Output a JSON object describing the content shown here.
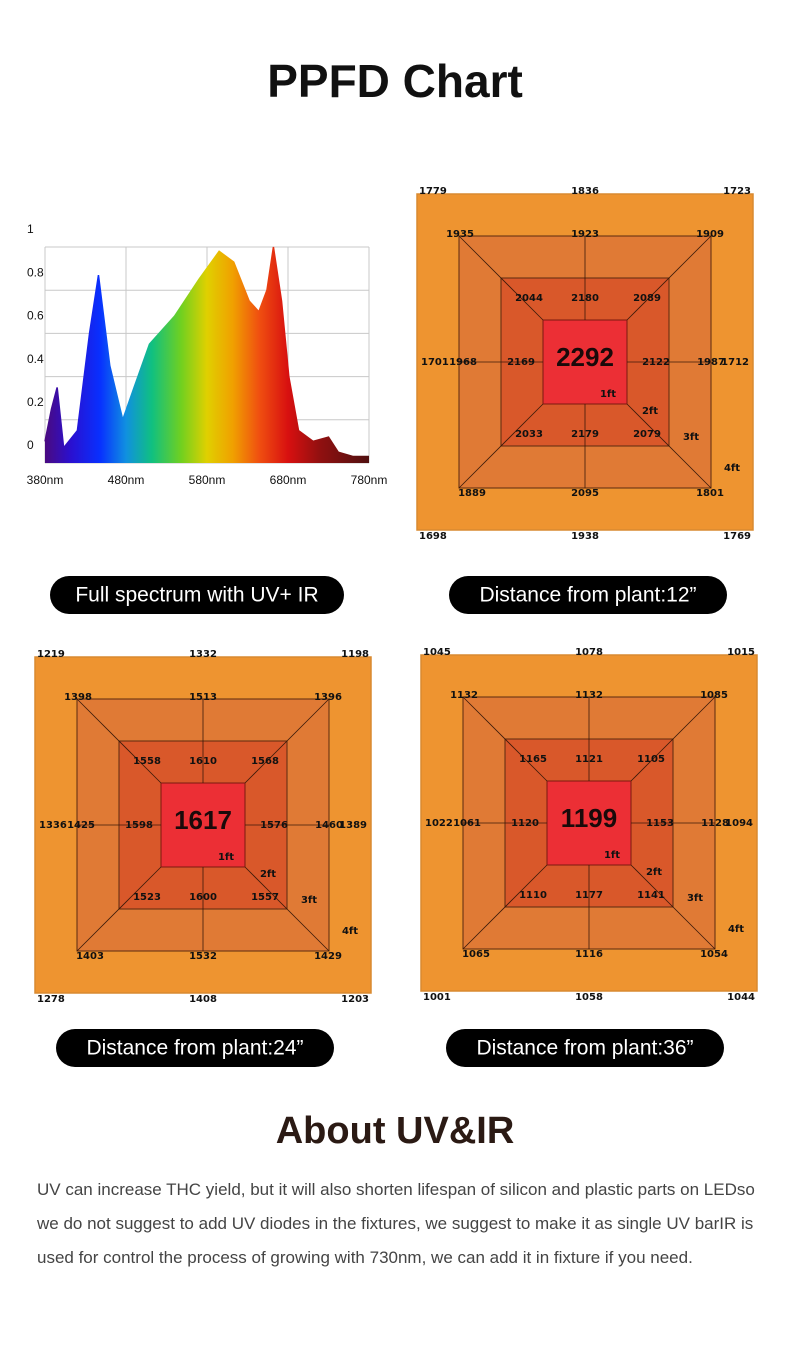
{
  "header": {
    "title": "PPFD Chart"
  },
  "spectrum_caption": "Full spectrum with UV+ IR",
  "chart_data": {
    "type": "area",
    "x": [
      380,
      388,
      395,
      403,
      420,
      435,
      446,
      460,
      476,
      490,
      509,
      540,
      570,
      595,
      613,
      632,
      644,
      654,
      662,
      672,
      681,
      693,
      711,
      730,
      742,
      760,
      780
    ],
    "values": [
      0.1,
      0.25,
      0.35,
      0.07,
      0.15,
      0.6,
      0.87,
      0.45,
      0.2,
      0.35,
      0.55,
      0.68,
      0.85,
      0.98,
      0.93,
      0.75,
      0.7,
      0.8,
      1.0,
      0.75,
      0.4,
      0.15,
      0.1,
      0.12,
      0.05,
      0.03,
      0.03
    ],
    "xlim": [
      380,
      780
    ],
    "ylim": [
      0,
      1
    ],
    "xticks": [
      {
        "value": 380,
        "label": "380nm"
      },
      {
        "value": 480,
        "label": "480nm"
      },
      {
        "value": 580,
        "label": "580nm"
      },
      {
        "value": 680,
        "label": "680nm"
      },
      {
        "value": 780,
        "label": "780nm"
      }
    ],
    "yticks": [
      0,
      0.2,
      0.4,
      0.6,
      0.8,
      1
    ],
    "grid": true
  },
  "ppfd_maps": [
    {
      "caption": "Distance from plant:12”",
      "center": {
        "label": "1ft",
        "value": 2292
      },
      "rings": [
        {
          "label": "4ft",
          "values": [
            1779,
            1836,
            1723,
            1701,
            1712,
            1698,
            1938,
            1769
          ]
        },
        {
          "label": "3ft",
          "values": [
            1935,
            1923,
            1909,
            1968,
            1987,
            1889,
            2095,
            1801
          ]
        },
        {
          "label": "2ft",
          "values": [
            2044,
            2180,
            2089,
            2169,
            2122,
            2033,
            2179,
            2079
          ]
        }
      ]
    },
    {
      "caption": "Distance from plant:24”",
      "center": {
        "label": "1ft",
        "value": 1617
      },
      "rings": [
        {
          "label": "4ft",
          "values": [
            1219,
            1332,
            1198,
            1336,
            1389,
            1278,
            1408,
            1203
          ]
        },
        {
          "label": "3ft",
          "values": [
            1398,
            1513,
            1396,
            1425,
            1460,
            1403,
            1532,
            1429
          ]
        },
        {
          "label": "2ft",
          "values": [
            1558,
            1610,
            1568,
            1598,
            1576,
            1523,
            1600,
            1557
          ]
        }
      ]
    },
    {
      "caption": "Distance from plant:36”",
      "center": {
        "label": "1ft",
        "value": 1199
      },
      "rings": [
        {
          "label": "4ft",
          "values": [
            1045,
            1078,
            1015,
            1022,
            1094,
            1001,
            1058,
            1044
          ]
        },
        {
          "label": "3ft",
          "values": [
            1132,
            1132,
            1085,
            1061,
            1128,
            1065,
            1116,
            1054
          ]
        },
        {
          "label": "2ft",
          "values": [
            1165,
            1121,
            1105,
            1120,
            1153,
            1110,
            1177,
            1141
          ]
        }
      ]
    }
  ],
  "about": {
    "title": "About UV&IR",
    "text": "UV can increase THC yield, but it will also shorten lifespan of silicon and plastic parts on LEDso we do not suggest to add UV diodes in the fixtures, we suggest to make it as single UV barIR is used for control the process of growing with 730nm, we can add it in fixture if you need."
  }
}
